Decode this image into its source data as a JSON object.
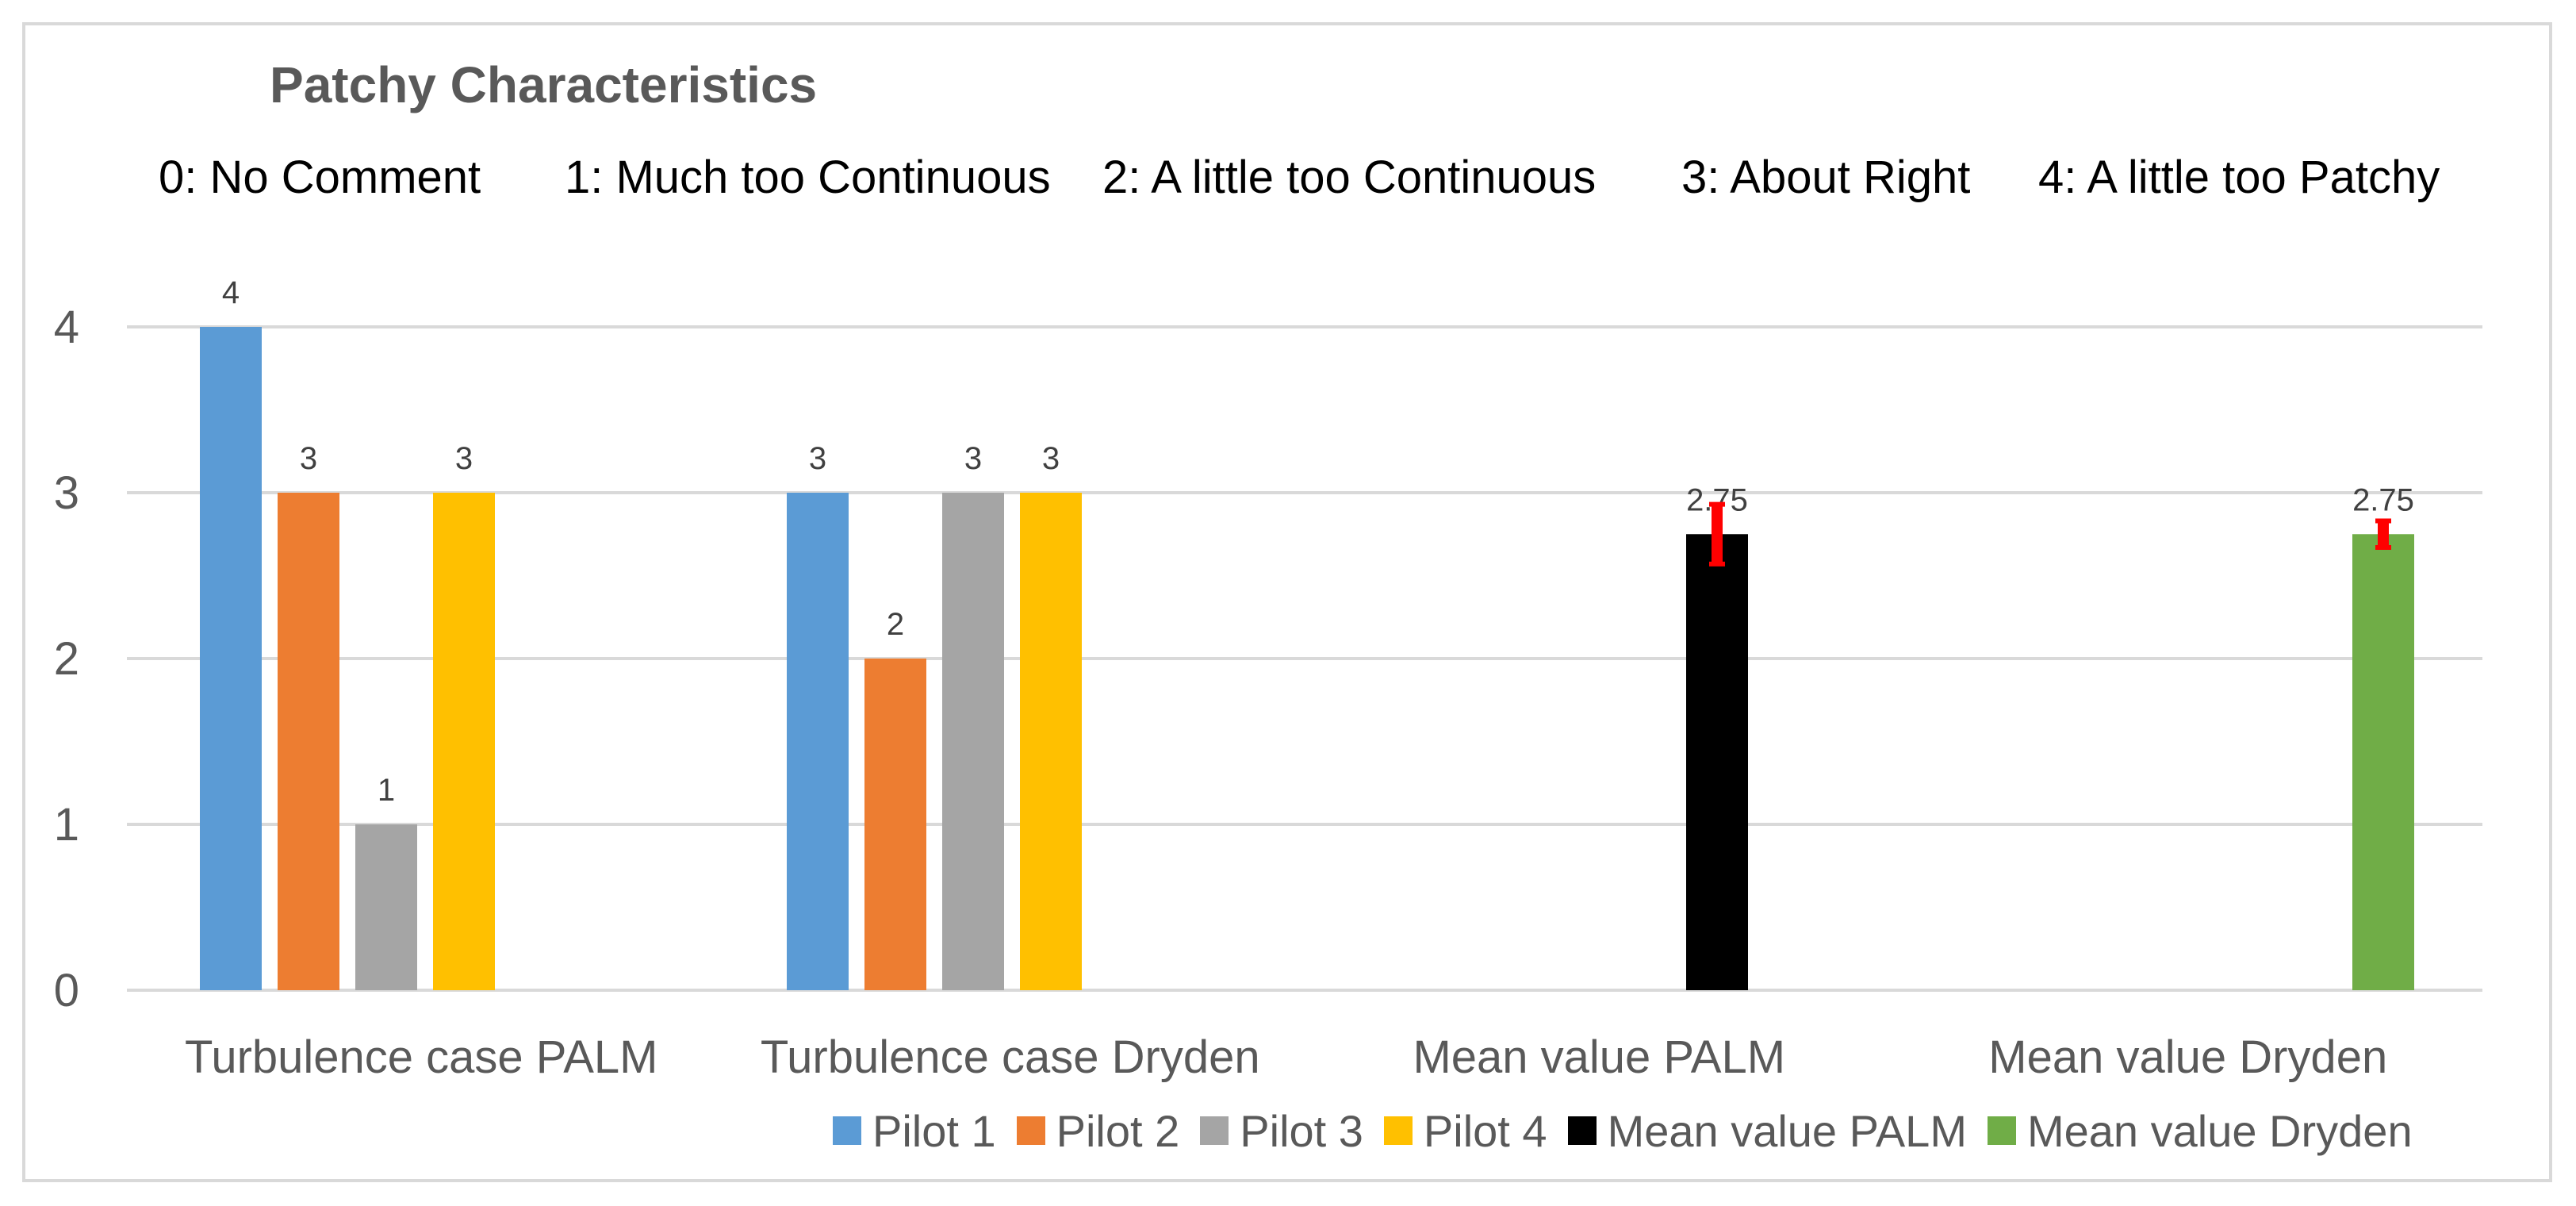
{
  "chart_data": {
    "type": "bar",
    "title": "Patchy Characteristics",
    "scale_labels": [
      "0:  No Comment",
      "1: Much too Continuous",
      "2: A little too Continuous",
      "3: About Right",
      "4: A little too Patchy"
    ],
    "categories": [
      "Turbulence case PALM",
      "Turbulence case Dryden",
      "Mean value PALM",
      "Mean value Dryden"
    ],
    "ylim": [
      0,
      4
    ],
    "yticks": [
      "0",
      "1",
      "2",
      "3",
      "4"
    ],
    "grid": true,
    "legend_position": "bottom",
    "series": [
      {
        "name": "Pilot 1",
        "color": "#5b9bd5",
        "values": [
          4,
          3,
          null,
          null
        ]
      },
      {
        "name": "Pilot 2",
        "color": "#ed7d31",
        "values": [
          3,
          2,
          null,
          null
        ]
      },
      {
        "name": "Pilot 3",
        "color": "#a5a5a5",
        "values": [
          1,
          3,
          null,
          null
        ]
      },
      {
        "name": "Pilot 4",
        "color": "#ffc000",
        "values": [
          3,
          3,
          null,
          null
        ]
      },
      {
        "name": "Mean value PALM",
        "color": "#000000",
        "values": [
          null,
          null,
          2.75,
          null
        ],
        "error": [
          null,
          null,
          0.18,
          null
        ]
      },
      {
        "name": "Mean value Dryden",
        "color": "#70ad47",
        "values": [
          null,
          null,
          null,
          2.75
        ],
        "error": [
          null,
          null,
          null,
          0.08
        ]
      }
    ],
    "value_labels": [
      [
        "4",
        "3",
        "1",
        "3"
      ],
      [
        "3",
        "2",
        "3",
        "3"
      ],
      [
        "2.75"
      ],
      [
        "2.75"
      ]
    ],
    "error_bar_color": "#ff0000"
  }
}
